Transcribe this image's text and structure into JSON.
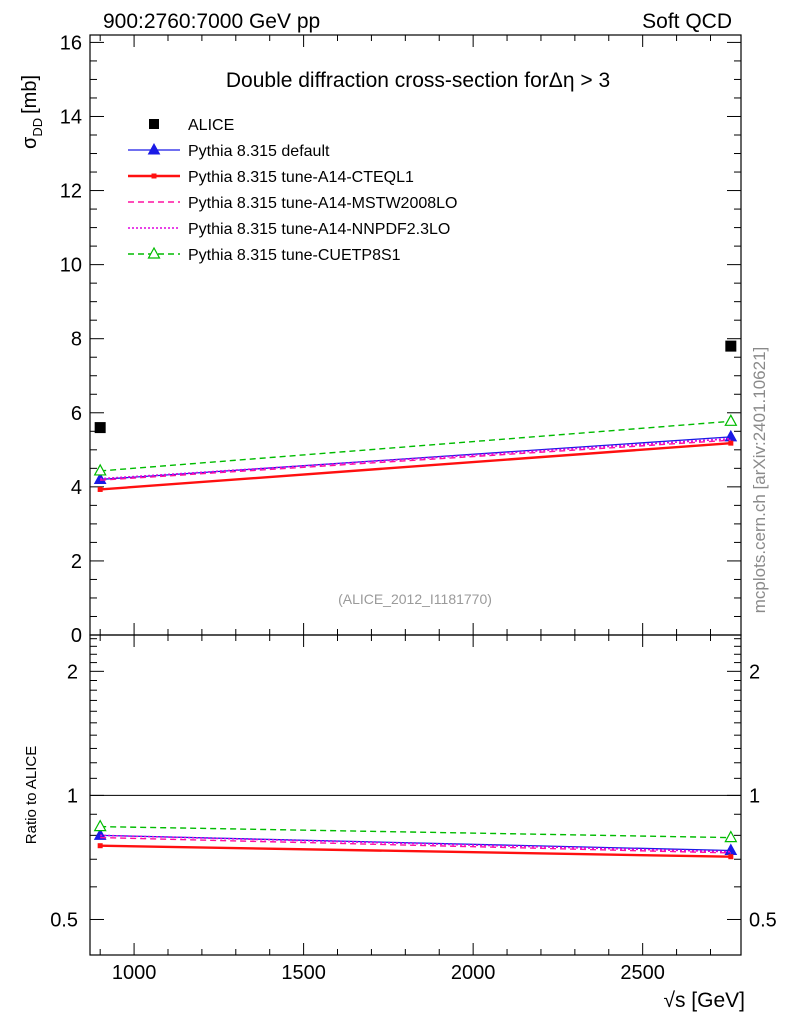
{
  "header": {
    "left": "900:2760:7000 GeV pp",
    "right": "Soft QCD"
  },
  "side_text": "mcplots.cern.ch [arXiv:2401.10621]",
  "chart_data": {
    "type": "line",
    "title": "Double diffraction cross-section forΔη > 3",
    "reference_tag": "(ALICE_2012_I1181770)",
    "xlabel": "√s [GeV]",
    "ylabel_main": "σ",
    "ylabel_sub": "DD",
    "ylabel_unit": "[mb]",
    "ratio_ylabel": "Ratio to ALICE",
    "xlim": [
      870,
      2790
    ],
    "ylim": [
      0,
      16.2
    ],
    "ratio_ylim": [
      0.41,
      2.45
    ],
    "x_ticks": [
      1000,
      1500,
      2000,
      2500
    ],
    "x_tick_labels": [
      "1000",
      "1500",
      "2000",
      "2500"
    ],
    "y_ticks": [
      0,
      2,
      4,
      6,
      8,
      10,
      12,
      14,
      16
    ],
    "y_tick_labels": [
      "0",
      "2",
      "4",
      "6",
      "8",
      "10",
      "12",
      "14",
      "16"
    ],
    "ratio_ticks": [
      0.5,
      1,
      2
    ],
    "ratio_tick_labels": [
      "0.5",
      "1",
      "2"
    ],
    "x": [
      900,
      2760
    ],
    "data": {
      "name": "ALICE",
      "values": [
        5.6,
        7.8
      ]
    },
    "series": [
      {
        "name": "Pythia 8.315 default",
        "color": "#1a1ae6",
        "style": "solid",
        "marker": "triangle-filled",
        "values": [
          4.2,
          5.35
        ],
        "ratio": [
          0.8,
          0.735
        ]
      },
      {
        "name": "Pythia 8.315 tune-A14-CTEQL1",
        "color": "#ff1010",
        "style": "solid-thick",
        "marker": "square-small",
        "values": [
          3.93,
          5.18
        ],
        "ratio": [
          0.755,
          0.71
        ]
      },
      {
        "name": "Pythia 8.315 tune-A14-MSTW2008LO",
        "color": "#ff10a0",
        "style": "dashed",
        "marker": "none",
        "values": [
          4.18,
          5.26
        ],
        "ratio": [
          0.79,
          0.725
        ]
      },
      {
        "name": "Pythia 8.315 tune-A14-NNPDF2.3LO",
        "color": "#e000e0",
        "style": "dotted",
        "marker": "none",
        "values": [
          4.22,
          5.3
        ],
        "ratio": [
          0.8,
          0.73
        ]
      },
      {
        "name": "Pythia 8.315 tune-CUETP8S1",
        "color": "#00bb00",
        "style": "dashed",
        "marker": "triangle-open",
        "values": [
          4.43,
          5.77
        ],
        "ratio": [
          0.84,
          0.79
        ]
      }
    ]
  }
}
